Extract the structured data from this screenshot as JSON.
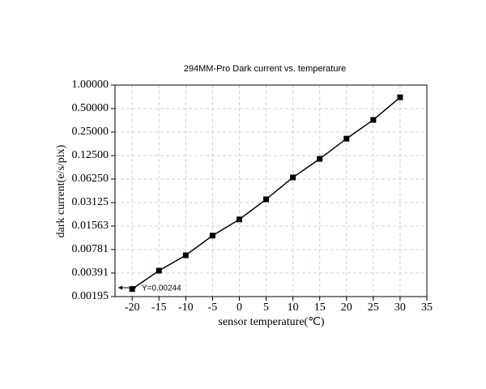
{
  "chart_data": {
    "type": "line",
    "title": "294MM-Pro Dark current vs. temperature",
    "x_label": "sensor temperature(℃)",
    "y_label": "dark current(e/s/pix)",
    "annotation": "Y=0.00244",
    "x": [
      -20,
      -15,
      -10,
      -5,
      0,
      5,
      10,
      15,
      20,
      25,
      30
    ],
    "series": [
      {
        "name": "dark current",
        "color": "#000000",
        "values": [
          0.00244,
          0.00419,
          0.0066,
          0.0118,
          0.019,
          0.0344,
          0.0656,
          0.1134,
          0.206,
          0.358,
          0.697
        ]
      }
    ],
    "xlim": [
      -23.2,
      35
    ],
    "xticks": [
      -20,
      -15,
      -10,
      -5,
      0,
      5,
      10,
      15,
      20,
      25,
      30,
      35
    ],
    "ylim": [
      0.00195,
      1
    ],
    "yticks": [
      {
        "value": 0.00195,
        "label": "0.00195"
      },
      {
        "value": 0.00391,
        "label": "0.00391"
      },
      {
        "value": 0.00781,
        "label": "0.00781"
      },
      {
        "value": 0.01563,
        "label": "0.01563"
      },
      {
        "value": 0.03125,
        "label": "0.03125"
      },
      {
        "value": 0.0625,
        "label": "0.06250"
      },
      {
        "value": 0.125,
        "label": "0.12500"
      },
      {
        "value": 0.25,
        "label": "0.25000"
      },
      {
        "value": 0.5,
        "label": "0.50000"
      },
      {
        "value": 1,
        "label": "1.00000"
      }
    ],
    "log_scale": true,
    "grid": true,
    "grid_color": "#bcd7ee"
  }
}
